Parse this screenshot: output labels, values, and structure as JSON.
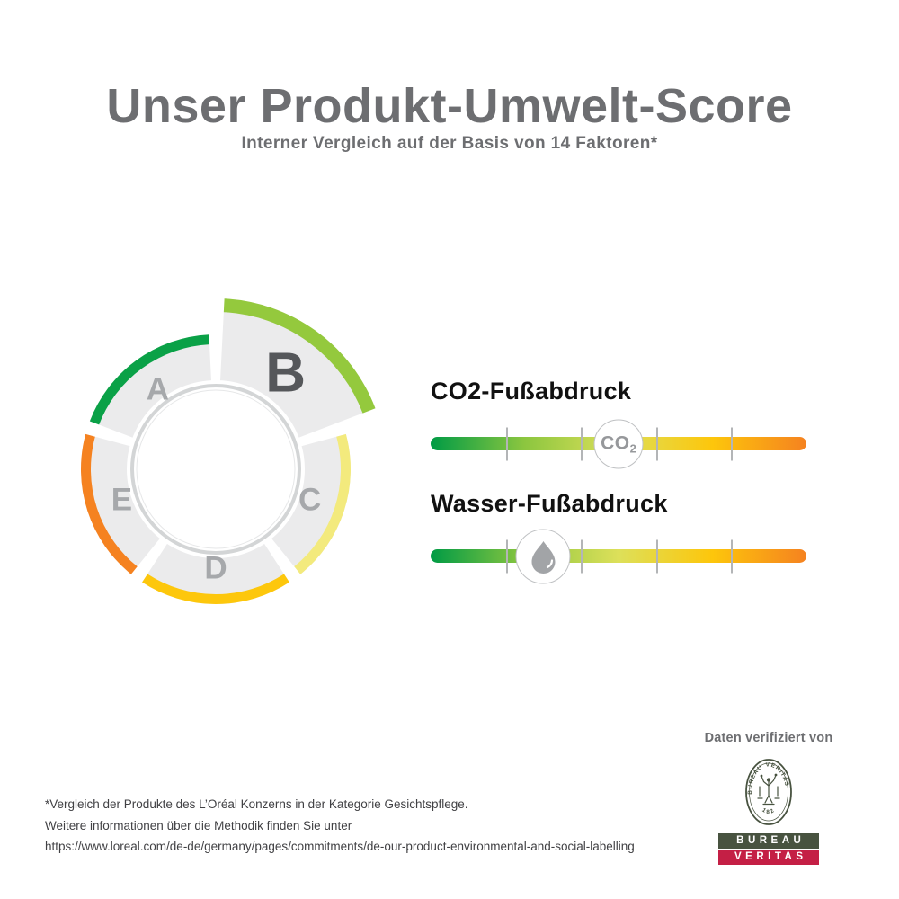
{
  "title": "Unser Produkt-Umwelt-Score",
  "subtitle": "Interner Vergleich auf der Basis von 14 Faktoren*",
  "score_wheel": {
    "selected_grade": "B",
    "arrangement_note": "segments listed clockwise from top",
    "wedge_fill": "#ebebec",
    "letter_color": "#a6a8ab",
    "selected_letter_color": "#55575a",
    "globe_land_color": "#c7c9cb",
    "ring_color": "#d3d5d6",
    "segments": [
      {
        "grade": "B",
        "color": "#94c93d",
        "highlighted": true
      },
      {
        "grade": "C",
        "color": "#f3ea7d",
        "highlighted": false
      },
      {
        "grade": "D",
        "color": "#fdc70c",
        "highlighted": false
      },
      {
        "grade": "E",
        "color": "#f58220",
        "highlighted": false
      },
      {
        "grade": "A",
        "color": "#0aa147",
        "highlighted": false
      }
    ]
  },
  "metrics": [
    {
      "label": "CO2-Fußabdruck",
      "marker_main": "CO",
      "marker_sub": "2",
      "position_percent": 50
    },
    {
      "label": "Wasser-Fußabdruck",
      "position_percent": 30
    }
  ],
  "scale": {
    "gradient_stops": [
      "#009b45",
      "#8cc63f",
      "#dde05a",
      "#fdc60b",
      "#f58220"
    ],
    "tick_positions_percent": [
      20,
      40,
      60,
      80
    ],
    "tick_color": "#b3b5b7"
  },
  "verification": {
    "caption": "Daten verifiziert von",
    "emblem_text": "BUREAU VERITAS",
    "emblem_year": "1828",
    "bar_top_label": "BUREAU",
    "bar_bottom_label": "VERITAS",
    "olive_color": "#485340",
    "red_color": "#c41f45"
  },
  "footnote_lines": [
    "*Vergleich der Produkte des L’Oréal Konzerns in der Kategorie Gesichtspflege.",
    "Weitere informationen über die Methodik finden Sie unter",
    "https://www.loreal.com/de-de/germany/pages/commitments/de-our-product-environmental-and-social-labelling"
  ],
  "text_colors": {
    "title": "#6d6e71",
    "heading": "#111111",
    "footnote": "#414144"
  },
  "chart_data": [
    {
      "type": "gauge",
      "title": "Produkt-Umwelt-Score",
      "scale": [
        "A",
        "B",
        "C",
        "D",
        "E"
      ],
      "value": "B",
      "segment_colors": {
        "A": "#0aa147",
        "B": "#94c93d",
        "C": "#f3ea7d",
        "D": "#fdc70c",
        "E": "#f58220"
      },
      "legend_position": "none"
    },
    {
      "type": "linear-scale",
      "title": "CO2-Fußabdruck",
      "scale_range": "A (green, best) to E (orange, worst)",
      "position_percent": 50,
      "approx_grade": "C"
    },
    {
      "type": "linear-scale",
      "title": "Wasser-Fußabdruck",
      "scale_range": "A (green, best) to E (orange, worst)",
      "position_percent": 30,
      "approx_grade": "B"
    }
  ]
}
